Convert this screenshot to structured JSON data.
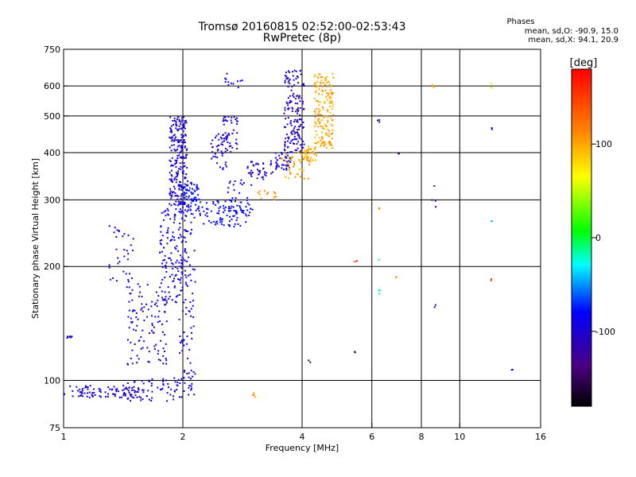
{
  "chart_data": {
    "type": "scatter",
    "title": "Tromsø 20160815 02:52:00-02:53:43",
    "subtitle": "RwPretec (8p)",
    "xlabel": "Frequency [MHz]",
    "ylabel": "Stationary phase Virtual Height [km]",
    "x_scale": "log",
    "y_scale": "log",
    "xlim": [
      1,
      16
    ],
    "ylim": [
      75,
      750
    ],
    "x_ticks": [
      1,
      2,
      4,
      6,
      8,
      10,
      16
    ],
    "x_tick_labels": [
      "1",
      "2",
      "4",
      "6",
      "8",
      "10",
      "16"
    ],
    "x_grid": [
      2,
      4,
      6,
      8,
      10
    ],
    "y_ticks": [
      75,
      100,
      200,
      300,
      400,
      500,
      600,
      750
    ],
    "y_tick_labels": [
      "75",
      "100",
      "200",
      "300",
      "400",
      "500",
      "600",
      "750"
    ],
    "y_grid": [
      100,
      200,
      300,
      400,
      500,
      600
    ],
    "grid": true,
    "phase_legend": {
      "heading": "Phases",
      "o_line": "mean, sd,O: -90.9, 15.0",
      "x_line": "mean, sd,X:  94.1, 20.9"
    },
    "colorbar": {
      "label": "[deg]",
      "ticks": [
        100,
        0,
        -100
      ],
      "tick_labels": [
        "100",
        "0",
        "-100"
      ],
      "range": [
        -180,
        180
      ]
    },
    "series": [
      {
        "name": "",
        "clusters": [
          {
            "x": [
              1.0,
              1.55
            ],
            "y": [
              90,
              97
            ],
            "phase": -100,
            "n": 90
          },
          {
            "x": [
              1.02,
              1.05
            ],
            "y": [
              129,
              131
            ],
            "phase": -105,
            "n": 8
          },
          {
            "x": [
              1.45,
              1.95
            ],
            "y": [
              88,
              102
            ],
            "phase": -95,
            "n": 60
          },
          {
            "x": [
              1.3,
              1.5
            ],
            "y": [
              175,
              260
            ],
            "phase": -100,
            "n": 35
          },
          {
            "x": [
              1.45,
              1.85
            ],
            "y": [
              110,
              180
            ],
            "phase": -100,
            "n": 110
          },
          {
            "x": [
              1.75,
              2.05
            ],
            "y": [
              160,
              290
            ],
            "phase": -95,
            "n": 140
          },
          {
            "x": [
              1.85,
              2.05
            ],
            "y": [
              290,
              500
            ],
            "phase": -100,
            "n": 220
          },
          {
            "x": [
              1.95,
              2.15
            ],
            "y": [
              90,
              340
            ],
            "phase": -95,
            "n": 120
          },
          {
            "x": [
              2.0,
              2.2
            ],
            "y": [
              275,
              330
            ],
            "phase": -80,
            "n": 60
          },
          {
            "x": [
              2.35,
              2.6
            ],
            "y": [
              360,
              450
            ],
            "phase": -100,
            "n": 45
          },
          {
            "x": [
              2.5,
              2.75
            ],
            "y": [
              400,
              500
            ],
            "phase": -100,
            "n": 40
          },
          {
            "x": [
              2.2,
              2.9
            ],
            "y": [
              255,
              300
            ],
            "phase": -85,
            "n": 80
          },
          {
            "x": [
              2.6,
              3.0
            ],
            "y": [
              270,
              340
            ],
            "phase": -90,
            "n": 40
          },
          {
            "x": [
              2.9,
              3.4
            ],
            "y": [
              340,
              380
            ],
            "phase": -105,
            "n": 40
          },
          {
            "x": [
              2.55,
              2.85
            ],
            "y": [
              590,
              650
            ],
            "phase": -90,
            "n": 12
          },
          {
            "x": [
              3.1,
              3.45
            ],
            "y": [
              300,
              320
            ],
            "phase": 110,
            "n": 12
          },
          {
            "x": [
              3.4,
              3.75
            ],
            "y": [
              360,
              400
            ],
            "phase": -95,
            "n": 40
          },
          {
            "x": [
              3.6,
              4.05
            ],
            "y": [
              400,
              660
            ],
            "phase": -105,
            "n": 160
          },
          {
            "x": [
              3.55,
              4.2
            ],
            "y": [
              340,
              410
            ],
            "phase": 100,
            "n": 50
          },
          {
            "x": [
              4.05,
              4.35
            ],
            "y": [
              380,
              420
            ],
            "phase": 95,
            "n": 30
          },
          {
            "x": [
              4.3,
              4.8
            ],
            "y": [
              410,
              650
            ],
            "phase": 100,
            "n": 170
          },
          {
            "x": [
              3.0,
              3.05
            ],
            "y": [
              89,
              93
            ],
            "phase": 110,
            "n": 5
          },
          {
            "x": [
              6.2,
              6.3
            ],
            "y": [
              470,
              490
            ],
            "phase": -120,
            "n": 3
          },
          {
            "x": [
              7.0,
              7.1
            ],
            "y": [
              395,
              400
            ],
            "phase": -150,
            "n": 2
          },
          {
            "x": [
              8.5,
              8.7
            ],
            "y": [
              560,
              620
            ],
            "phase": 100,
            "n": 3
          },
          {
            "x": [
              8.5,
              8.7
            ],
            "y": [
              280,
              340
            ],
            "phase": -110,
            "n": 4
          },
          {
            "x": [
              8.6,
              8.7
            ],
            "y": [
              155,
              160
            ],
            "phase": -100,
            "n": 2
          },
          {
            "x": [
              12.0,
              12.1
            ],
            "y": [
              590,
              615
            ],
            "phase": 60,
            "n": 3
          },
          {
            "x": [
              12.0,
              12.1
            ],
            "y": [
              260,
              265
            ],
            "phase": -50,
            "n": 2
          },
          {
            "x": [
              12.0,
              12.1
            ],
            "y": [
              182,
              186
            ],
            "phase": 150,
            "n": 2
          },
          {
            "x": [
              12.0,
              12.1
            ],
            "y": [
              455,
              465
            ],
            "phase": -100,
            "n": 2
          },
          {
            "x": [
              13.5,
              13.6
            ],
            "y": [
              105,
              107
            ],
            "phase": -130,
            "n": 2
          },
          {
            "x": [
              6.25,
              6.3
            ],
            "y": [
              160,
              210
            ],
            "phase": -10,
            "n": 4
          },
          {
            "x": [
              6.25,
              6.3
            ],
            "y": [
              280,
              290
            ],
            "phase": 120,
            "n": 2
          },
          {
            "x": [
              5.4,
              5.5
            ],
            "y": [
              205,
              207
            ],
            "phase": 160,
            "n": 2
          },
          {
            "x": [
              5.4,
              5.5
            ],
            "y": [
              118,
              120
            ],
            "phase": -160,
            "n": 2
          },
          {
            "x": [
              6.9,
              7.0
            ],
            "y": [
              187,
              189
            ],
            "phase": 120,
            "n": 2
          },
          {
            "x": [
              4.15,
              4.2
            ],
            "y": [
              111,
              113
            ],
            "phase": -150,
            "n": 2
          }
        ]
      }
    ]
  }
}
